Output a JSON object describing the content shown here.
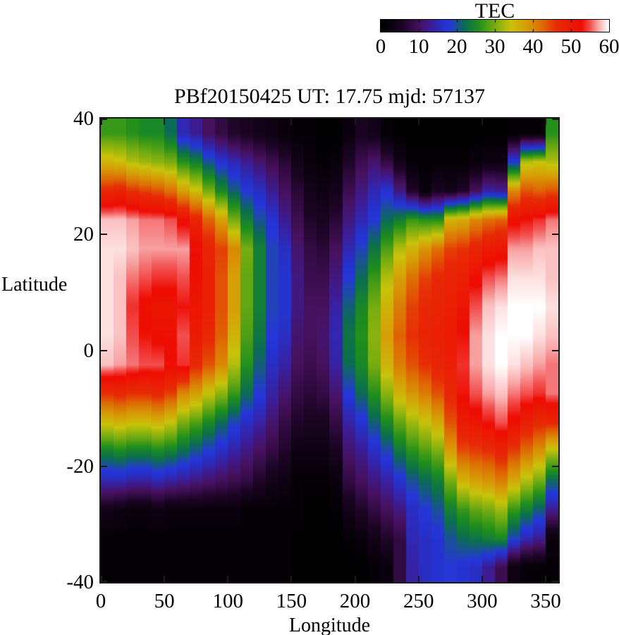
{
  "title": "PBf20150425  UT: 17.75  mjd: 57137",
  "colorbar": {
    "label": "TEC",
    "min": 0,
    "max": 60,
    "tick_labels": [
      0,
      10,
      20,
      30,
      40,
      50,
      60
    ],
    "minor_marks": [
      10,
      20,
      30,
      40,
      50
    ]
  },
  "palette": {
    "stops": [
      [
        0.0,
        "#000000"
      ],
      [
        0.09,
        "#1a0422"
      ],
      [
        0.17,
        "#47115f"
      ],
      [
        0.22,
        "#3c1d96"
      ],
      [
        0.28,
        "#2433cf"
      ],
      [
        0.3,
        "#2636d8"
      ],
      [
        0.37,
        "#0b6e4f"
      ],
      [
        0.43,
        "#1f8f1c"
      ],
      [
        0.5,
        "#77ad10"
      ],
      [
        0.57,
        "#c8c30a"
      ],
      [
        0.64,
        "#d69c06"
      ],
      [
        0.71,
        "#de6904"
      ],
      [
        0.77,
        "#e72c06"
      ],
      [
        0.88,
        "#ee0d02"
      ],
      [
        0.92,
        "#f25555"
      ],
      [
        0.955,
        "#f9acac"
      ],
      [
        1.0,
        "#ffffff"
      ]
    ]
  },
  "chart_data": {
    "type": "heatmap",
    "title": "PBf20150425  UT: 17.75  mjd: 57137",
    "xlabel": "Longitude",
    "ylabel": "Latitude",
    "zlabel": "TEC",
    "xlim": [
      0,
      360
    ],
    "ylim": [
      -40,
      40
    ],
    "zlim": [
      0,
      60
    ],
    "x_ticks": [
      0,
      50,
      100,
      150,
      200,
      250,
      300,
      350
    ],
    "y_ticks": [
      40,
      20,
      0,
      -20,
      -40
    ],
    "grid": false,
    "lon_cell_deg": 10,
    "lat_cell_deg": 5,
    "lon_centers_start": 5,
    "lat_rows_top_to_bottom": [
      37.5,
      32.5,
      27.5,
      22.5,
      17.5,
      12.5,
      7.5,
      2.5,
      -2.5,
      -7.5,
      -12.5,
      -17.5,
      -22.5,
      -27.5,
      -32.5,
      -37.5
    ],
    "values": [
      [
        27,
        27,
        26,
        25,
        25,
        22,
        15,
        13,
        10,
        8,
        6,
        5,
        4,
        3,
        2,
        1,
        1,
        0,
        0,
        2,
        5,
        4,
        1,
        0,
        0,
        0,
        0,
        0,
        0,
        0,
        0,
        0,
        1,
        1,
        1,
        26
      ],
      [
        36,
        35,
        33,
        32,
        31,
        30,
        26,
        24,
        20,
        17,
        15,
        13,
        11,
        9,
        7,
        4,
        2,
        1,
        2,
        6,
        9,
        11,
        8,
        4,
        1,
        1,
        1,
        1,
        1,
        2,
        3,
        3,
        18,
        33,
        34,
        33
      ],
      [
        47,
        48,
        46,
        45,
        44,
        42,
        38,
        35,
        30,
        25,
        21,
        18,
        16,
        13,
        10,
        7,
        4,
        3,
        4,
        9,
        12,
        15,
        17,
        12,
        6,
        2,
        5,
        4,
        6,
        10,
        14,
        13,
        40,
        44,
        43,
        44
      ],
      [
        58,
        58,
        57,
        56,
        56,
        55,
        52,
        48,
        43,
        38,
        30,
        24,
        20,
        17,
        13,
        9,
        6,
        5,
        7,
        12,
        15,
        18,
        22,
        24,
        27,
        26,
        26,
        36,
        37,
        40,
        42,
        43,
        52,
        53,
        54,
        56
      ],
      [
        59,
        59,
        58,
        57,
        57,
        57,
        57,
        53,
        48,
        45,
        40,
        30,
        24,
        19,
        16,
        11,
        8,
        7,
        10,
        15,
        19,
        23,
        28,
        33,
        36,
        39,
        42,
        45,
        46,
        48,
        50,
        51,
        57,
        57,
        58,
        58
      ],
      [
        59,
        58,
        56,
        55,
        54,
        54,
        55,
        52,
        49,
        44,
        38,
        29,
        24,
        19,
        17,
        12,
        9,
        9,
        12,
        18,
        22,
        27,
        33,
        38,
        42,
        45,
        47,
        48,
        49,
        52,
        55,
        56,
        59,
        59,
        59,
        58
      ],
      [
        59,
        58,
        54,
        52,
        51,
        51,
        53,
        51,
        49,
        44,
        38,
        29,
        24,
        19,
        17,
        12,
        10,
        10,
        14,
        21,
        25,
        30,
        36,
        41,
        45,
        47,
        48,
        49,
        51,
        55,
        58,
        59,
        60,
        60,
        60,
        59
      ],
      [
        59,
        58,
        55,
        53,
        52,
        52,
        55,
        50,
        47,
        43,
        36,
        28,
        23,
        18,
        16,
        11,
        10,
        11,
        15,
        23,
        26,
        31,
        38,
        43,
        46,
        48,
        49,
        50,
        53,
        57,
        59,
        60,
        60,
        60,
        59,
        58
      ],
      [
        58,
        57,
        56,
        55,
        55,
        53,
        54,
        47,
        44,
        40,
        33,
        26,
        21,
        16,
        14,
        10,
        9,
        10,
        14,
        22,
        25,
        30,
        36,
        41,
        44,
        46,
        48,
        49,
        54,
        57,
        59,
        60,
        59,
        58,
        57,
        56
      ],
      [
        46,
        47,
        46,
        46,
        47,
        45,
        40,
        38,
        34,
        31,
        27,
        22,
        18,
        14,
        11,
        8,
        7,
        8,
        11,
        18,
        22,
        26,
        31,
        36,
        39,
        41,
        44,
        47,
        53,
        55,
        57,
        58,
        56,
        55,
        54,
        56
      ],
      [
        35,
        36,
        35,
        35,
        36,
        34,
        30,
        28,
        25,
        22,
        19,
        16,
        14,
        11,
        8,
        6,
        5,
        5,
        8,
        14,
        17,
        21,
        25,
        29,
        32,
        34,
        37,
        44,
        50,
        51,
        53,
        55,
        52,
        49,
        47,
        47
      ],
      [
        24,
        25,
        24,
        24,
        25,
        24,
        22,
        20,
        18,
        16,
        14,
        12,
        10,
        8,
        6,
        3,
        3,
        3,
        5,
        11,
        13,
        16,
        19,
        23,
        26,
        28,
        30,
        38,
        44,
        45,
        46,
        48,
        45,
        42,
        39,
        33
      ],
      [
        15,
        15,
        14,
        14,
        15,
        14,
        13,
        12,
        11,
        10,
        9,
        8,
        6,
        4,
        3,
        1,
        1,
        1,
        2,
        8,
        10,
        12,
        14,
        17,
        20,
        22,
        24,
        30,
        36,
        38,
        39,
        41,
        37,
        33,
        30,
        22
      ],
      [
        4,
        3,
        2,
        2,
        3,
        2,
        2,
        2,
        2,
        2,
        2,
        1,
        1,
        1,
        1,
        1,
        0,
        0,
        1,
        4,
        6,
        8,
        10,
        12,
        16,
        18,
        20,
        24,
        27,
        29,
        30,
        32,
        27,
        24,
        21,
        13
      ],
      [
        1,
        1,
        1,
        1,
        1,
        1,
        1,
        1,
        1,
        1,
        1,
        1,
        1,
        1,
        1,
        0,
        0,
        0,
        0,
        1,
        2,
        4,
        6,
        8,
        15,
        16,
        17,
        20,
        22,
        23,
        24,
        25,
        19,
        15,
        13,
        2
      ],
      [
        1,
        1,
        1,
        1,
        1,
        1,
        1,
        1,
        1,
        1,
        1,
        1,
        1,
        1,
        1,
        0,
        0,
        0,
        0,
        0,
        0,
        1,
        2,
        8,
        14,
        16,
        17,
        18,
        17,
        16,
        13,
        9,
        3,
        1,
        1,
        1
      ]
    ]
  }
}
